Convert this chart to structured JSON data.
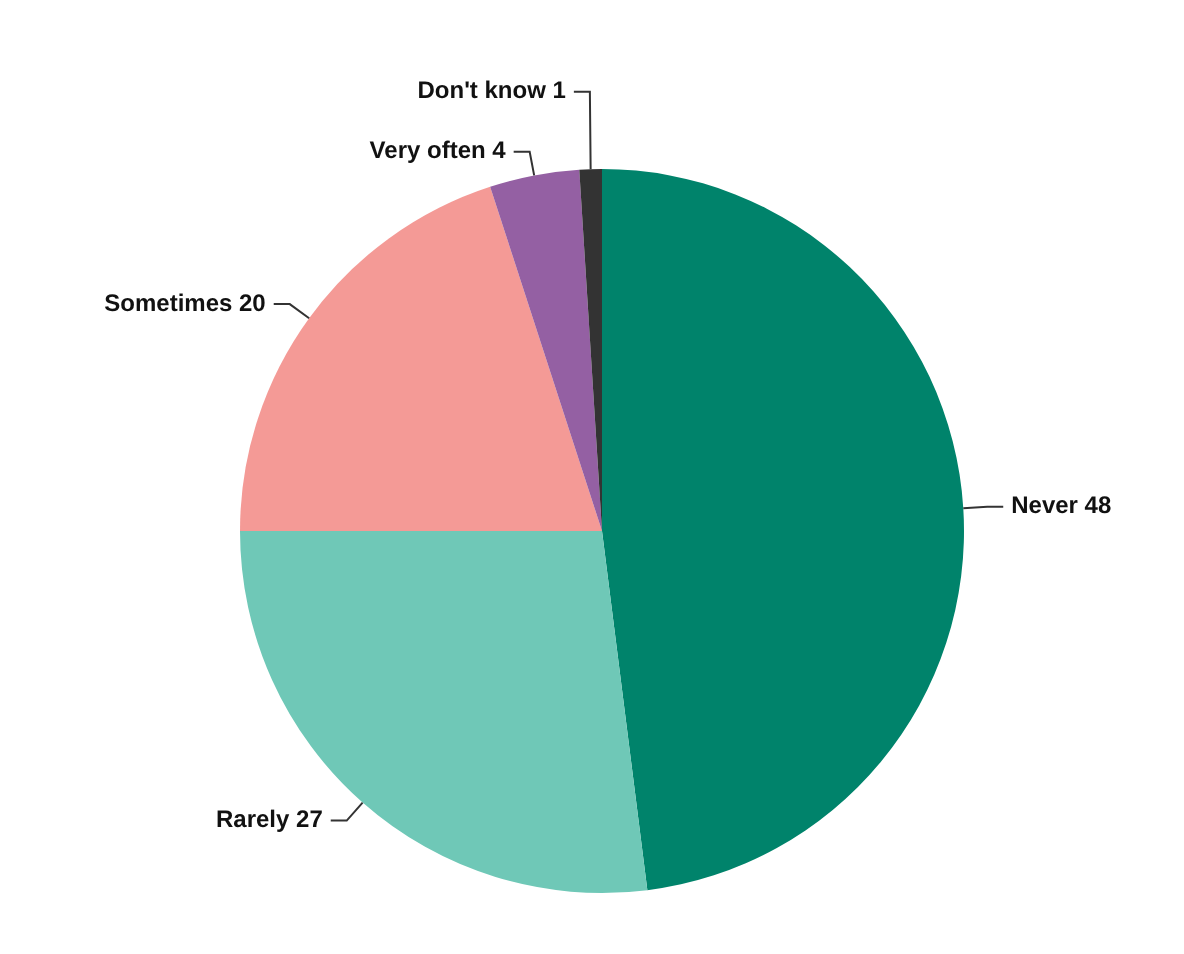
{
  "chart_data": {
    "type": "pie",
    "categories": [
      "Never",
      "Rarely",
      "Sometimes",
      "Very often",
      "Don't know"
    ],
    "values": [
      48,
      27,
      20,
      4,
      1
    ],
    "colors": [
      "#00836b",
      "#6fc8b7",
      "#f49a96",
      "#9460a3",
      "#333333"
    ],
    "data_labels": true,
    "legend": false
  }
}
